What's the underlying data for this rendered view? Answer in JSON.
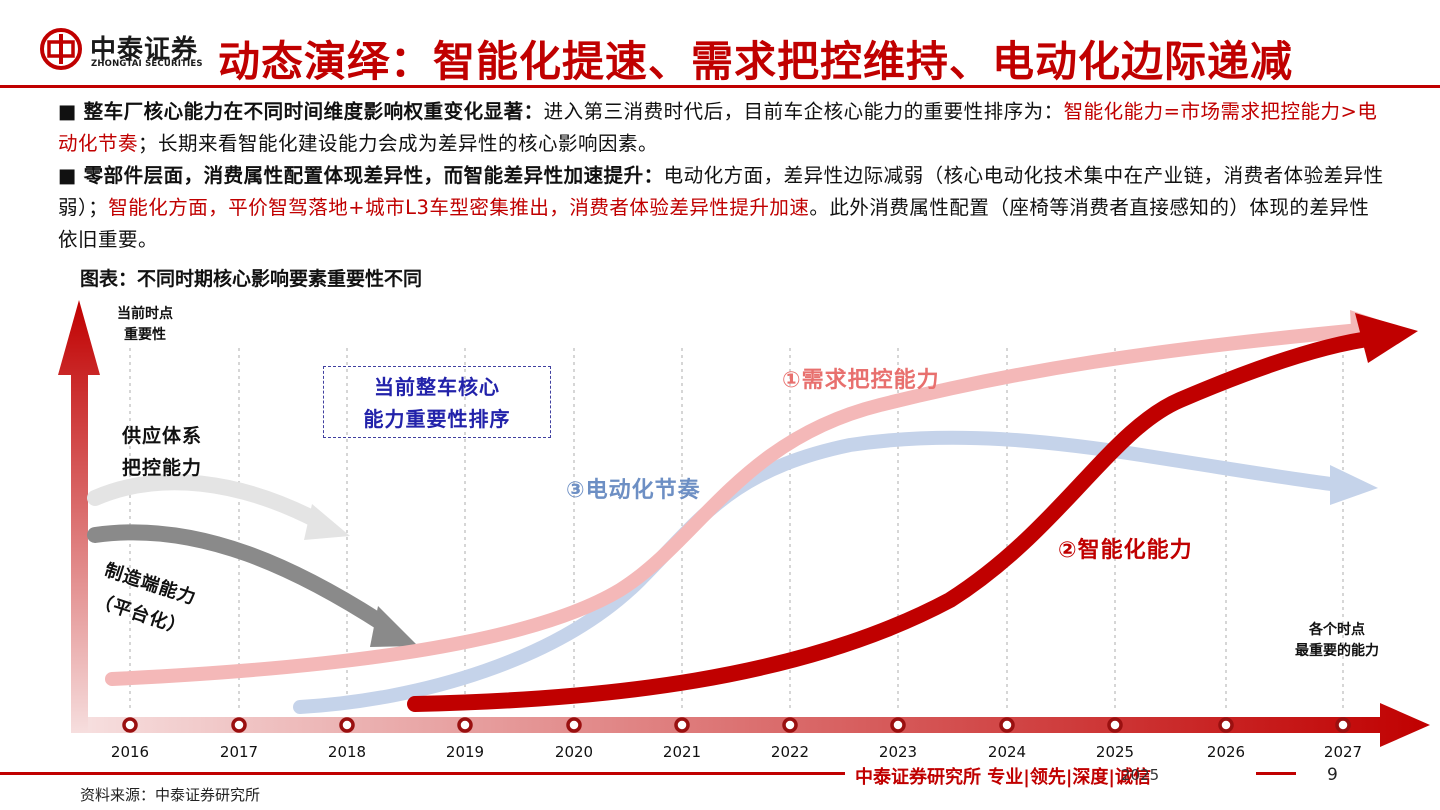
{
  "header": {
    "logo_cn": "中泰证券",
    "logo_en": "ZHONGTAI SECURITIES",
    "title": "动态演绎：智能化提速、需求把控维持、电动化边际递减"
  },
  "bullets": [
    {
      "lead": "整车厂核心能力在不同时间维度影响权重变化显著：",
      "text1": "进入第三消费时代后，目前车企核心能力的重要性排序为：",
      "red1": "智能化能力=市场需求把控能力>电动化节奏",
      "text2": "；长期来看智能化建设能力会成为差异性的核心影响因素。"
    },
    {
      "lead": "零部件层面，消费属性配置体现差异性，而智能差异性加速提升：",
      "text1": "电动化方面，差异性边际减弱（核心电动化技术集中在产业链，消费者体验差异性弱）；",
      "red1": "智能化方面，平价智驾落地+城市L3车型密集推出，消费者体验差异性提升加速",
      "text2": "。此外消费属性配置（座椅等消费者直接感知的）体现的差异性依旧重要。"
    }
  ],
  "figure": {
    "title": "图表：不同时期核心影响要素重要性不同",
    "y_label_1": "当前时点",
    "y_label_2": "重要性",
    "x_label_1": "各个时点",
    "x_label_2": "最重要的能力",
    "supply_1": "供应体系",
    "supply_2": "把控能力",
    "mfg_1": "制造端能力",
    "mfg_2": "（平台化）",
    "box_1": "当前整车核心",
    "box_2": "能力重要性排序",
    "demand_label": "①需求把控能力",
    "smart_label": "②智能化能力",
    "ev_label": "③电动化节奏",
    "years": [
      "2016",
      "2017",
      "2018",
      "2019",
      "2020",
      "2021",
      "2022",
      "2023",
      "2024",
      "2025",
      "2026",
      "2027"
    ],
    "colors": {
      "demand": "#f4b8b8",
      "smart": "#c00000",
      "ev": "#c5d3ea",
      "grey": "#8a8a8a",
      "lightgrey": "#e4e4e4"
    }
  },
  "footer": {
    "slogan": "中泰证券研究所 专业|领先|深度|诚信",
    "year": "2025",
    "page": "9",
    "source": "资料来源：中泰证券研究所"
  }
}
